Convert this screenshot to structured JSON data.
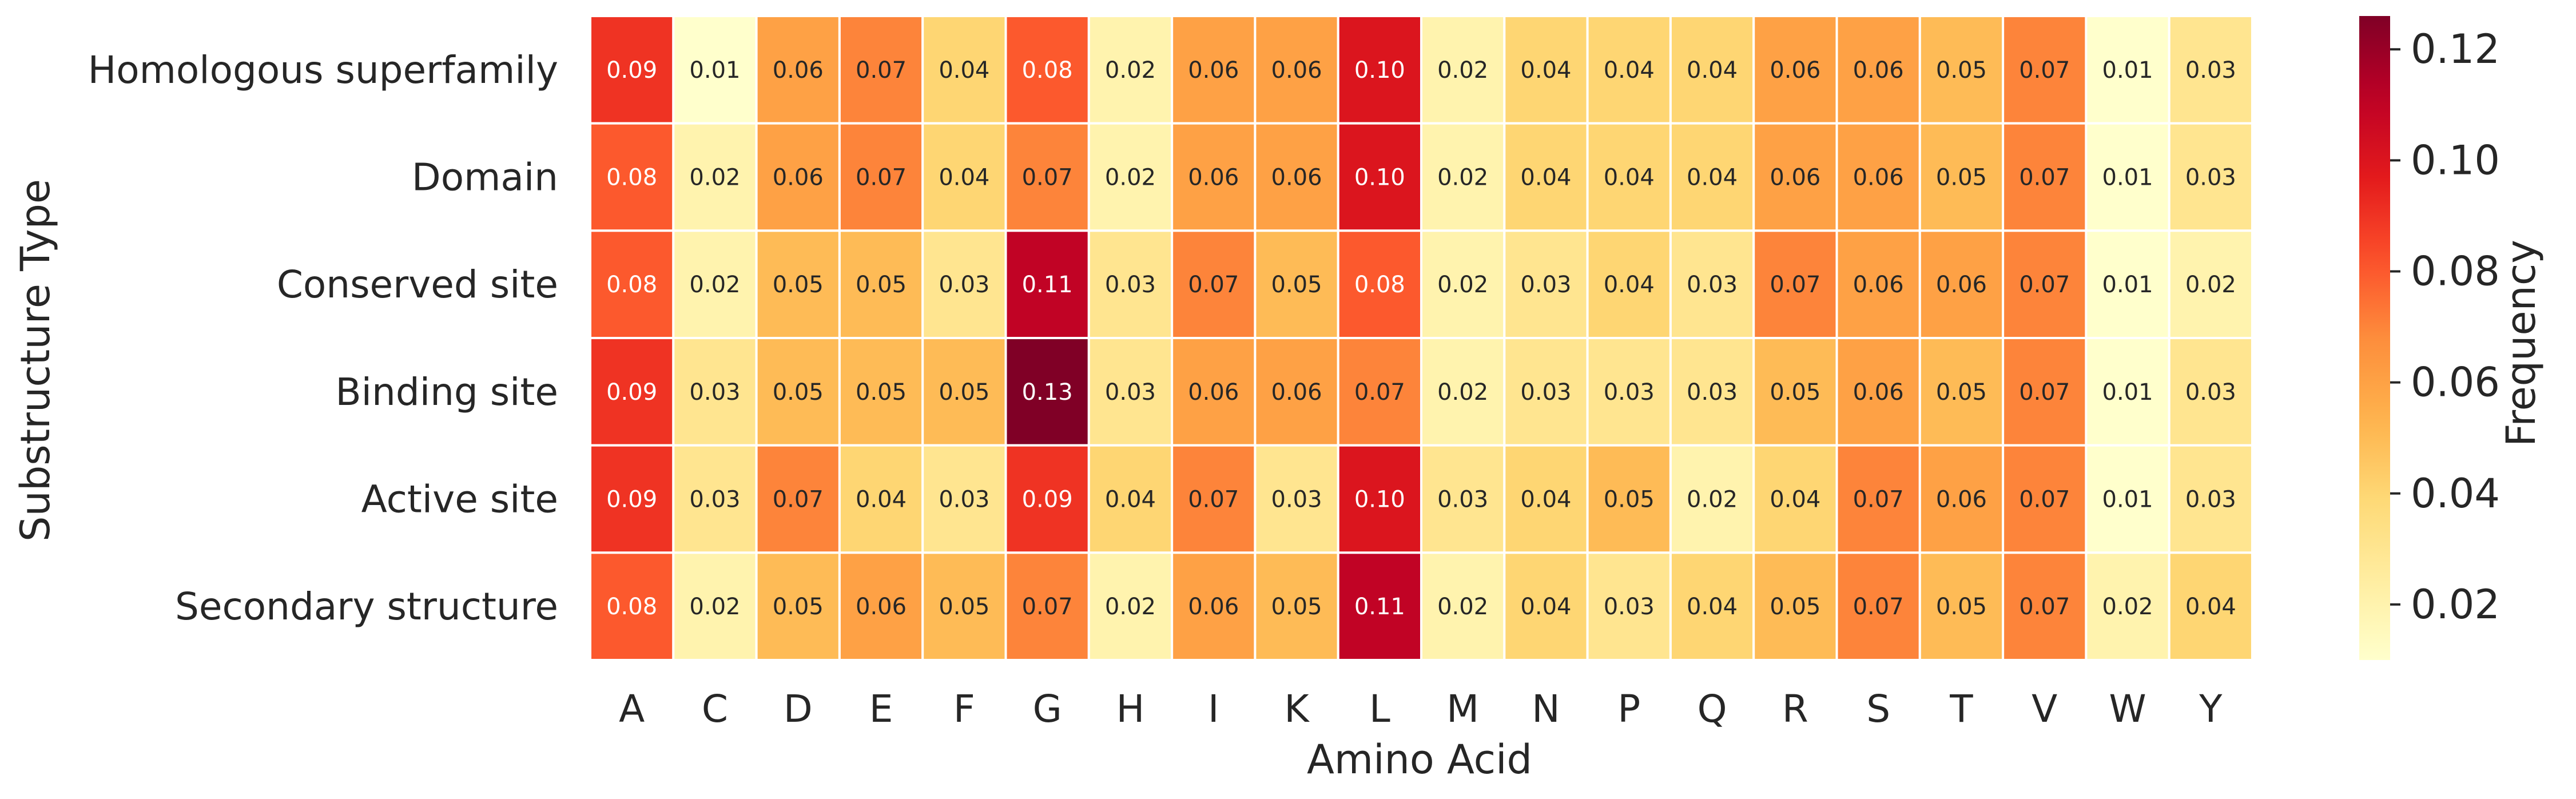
{
  "chart_data": {
    "type": "heatmap",
    "xlabel": "Amino Acid",
    "ylabel": "Substructure Type",
    "x_categories": [
      "A",
      "C",
      "D",
      "E",
      "F",
      "G",
      "H",
      "I",
      "K",
      "L",
      "M",
      "N",
      "P",
      "Q",
      "R",
      "S",
      "T",
      "V",
      "W",
      "Y"
    ],
    "y_categories": [
      "Homologous superfamily",
      "Domain",
      "Conserved site",
      "Binding site",
      "Active site",
      "Secondary structure"
    ],
    "values": [
      [
        0.09,
        0.01,
        0.06,
        0.07,
        0.04,
        0.08,
        0.02,
        0.06,
        0.06,
        0.1,
        0.02,
        0.04,
        0.04,
        0.04,
        0.06,
        0.06,
        0.05,
        0.07,
        0.01,
        0.03
      ],
      [
        0.08,
        0.02,
        0.06,
        0.07,
        0.04,
        0.07,
        0.02,
        0.06,
        0.06,
        0.1,
        0.02,
        0.04,
        0.04,
        0.04,
        0.06,
        0.06,
        0.05,
        0.07,
        0.01,
        0.03
      ],
      [
        0.08,
        0.02,
        0.05,
        0.05,
        0.03,
        0.11,
        0.03,
        0.07,
        0.05,
        0.08,
        0.02,
        0.03,
        0.04,
        0.03,
        0.07,
        0.06,
        0.06,
        0.07,
        0.01,
        0.02
      ],
      [
        0.09,
        0.03,
        0.05,
        0.05,
        0.05,
        0.13,
        0.03,
        0.06,
        0.06,
        0.07,
        0.02,
        0.03,
        0.03,
        0.03,
        0.05,
        0.06,
        0.05,
        0.07,
        0.01,
        0.03
      ],
      [
        0.09,
        0.03,
        0.07,
        0.04,
        0.03,
        0.09,
        0.04,
        0.07,
        0.03,
        0.1,
        0.03,
        0.04,
        0.05,
        0.02,
        0.04,
        0.07,
        0.06,
        0.07,
        0.01,
        0.03
      ],
      [
        0.08,
        0.02,
        0.05,
        0.06,
        0.05,
        0.07,
        0.02,
        0.06,
        0.05,
        0.11,
        0.02,
        0.04,
        0.03,
        0.04,
        0.05,
        0.07,
        0.05,
        0.07,
        0.02,
        0.04
      ]
    ],
    "colorbar": {
      "label": "Frequency",
      "colormap": "YlOrRd",
      "vmin": 0.01,
      "vmax": 0.126,
      "ticks": [
        0.02,
        0.04,
        0.06,
        0.08,
        0.1,
        0.12
      ],
      "tick_labels": [
        "0.02",
        "0.04",
        "0.06",
        "0.08",
        "0.10",
        "0.12"
      ]
    },
    "annotate": true,
    "value_format": "2 decimals",
    "grid": false
  }
}
